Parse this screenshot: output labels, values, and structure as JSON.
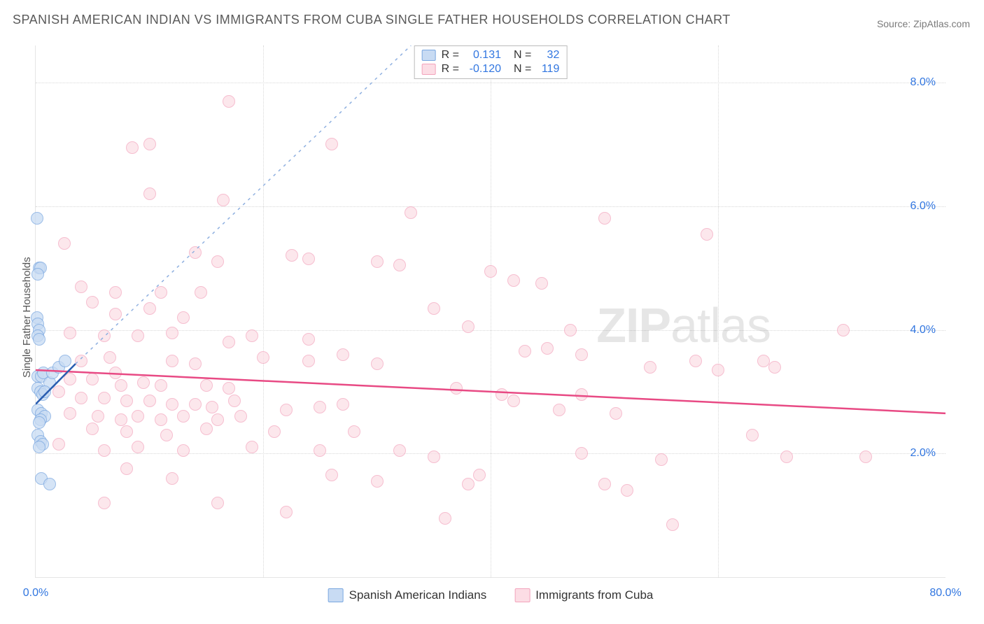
{
  "title": "SPANISH AMERICAN INDIAN VS IMMIGRANTS FROM CUBA SINGLE FATHER HOUSEHOLDS CORRELATION CHART",
  "source": "Source: ZipAtlas.com",
  "watermark_main": "ZIP",
  "watermark_sub": "atlas",
  "chart": {
    "ylabel": "Single Father Households",
    "xlim": [
      0,
      80
    ],
    "ylim": [
      0,
      8.6
    ],
    "grid_y_values": [
      2,
      4,
      6,
      8
    ],
    "grid_x_values": [
      20,
      40,
      60
    ],
    "ytick_labels": [
      "2.0%",
      "4.0%",
      "6.0%",
      "8.0%"
    ],
    "xtick_labels": {
      "left": "0.0%",
      "right": "80.0%"
    },
    "grid_color": "#d8d8d8",
    "background_color": "#ffffff",
    "axis_label_color": "#3176e0",
    "series": [
      {
        "key": "series_a",
        "name": "Spanish American Indians",
        "marker_fill": "#c8dbf3",
        "marker_stroke": "#7aa7e0",
        "marker_opacity": 0.75,
        "line_color": "#2a5db0",
        "line_width": 2.5,
        "ext_dash": "4,6",
        "ext_color": "#8fb0e0",
        "R": "0.131",
        "N": "32",
        "trend": {
          "x1": 0,
          "y1": 2.8,
          "x2": 3.5,
          "y2": 3.45
        },
        "trend_ext": {
          "x1": 3.5,
          "y1": 3.45,
          "x2": 33,
          "y2": 8.6
        },
        "points": [
          [
            0.1,
            5.8
          ],
          [
            0.3,
            5.0
          ],
          [
            0.4,
            5.0
          ],
          [
            0.2,
            4.9
          ],
          [
            0.1,
            4.2
          ],
          [
            0.2,
            4.1
          ],
          [
            0.3,
            4.0
          ],
          [
            0.2,
            3.9
          ],
          [
            0.3,
            3.85
          ],
          [
            0.2,
            3.25
          ],
          [
            0.5,
            3.25
          ],
          [
            0.7,
            3.3
          ],
          [
            1.2,
            3.15
          ],
          [
            1.5,
            3.3
          ],
          [
            2.0,
            3.4
          ],
          [
            2.6,
            3.5
          ],
          [
            0.2,
            3.05
          ],
          [
            0.4,
            3.0
          ],
          [
            0.6,
            2.95
          ],
          [
            0.8,
            3.0
          ],
          [
            0.2,
            2.7
          ],
          [
            0.5,
            2.65
          ],
          [
            0.8,
            2.6
          ],
          [
            0.4,
            2.55
          ],
          [
            0.3,
            2.5
          ],
          [
            0.2,
            2.3
          ],
          [
            0.4,
            2.2
          ],
          [
            0.6,
            2.15
          ],
          [
            0.3,
            2.1
          ],
          [
            0.5,
            1.6
          ],
          [
            1.2,
            1.5
          ]
        ]
      },
      {
        "key": "series_b",
        "name": "Immigrants from Cuba",
        "marker_fill": "#fcdde5",
        "marker_stroke": "#f3a3bc",
        "marker_opacity": 0.7,
        "line_color": "#e84a84",
        "line_width": 2.5,
        "R": "-0.120",
        "N": "119",
        "trend": {
          "x1": 0,
          "y1": 3.35,
          "x2": 80,
          "y2": 2.65
        },
        "points": [
          [
            17,
            7.7
          ],
          [
            10,
            7.0
          ],
          [
            8.5,
            6.95
          ],
          [
            26,
            7.0
          ],
          [
            10,
            6.2
          ],
          [
            16.5,
            6.1
          ],
          [
            33,
            5.9
          ],
          [
            50,
            5.8
          ],
          [
            59,
            5.55
          ],
          [
            2.5,
            5.4
          ],
          [
            14,
            5.25
          ],
          [
            16,
            5.1
          ],
          [
            22.5,
            5.2
          ],
          [
            24,
            5.15
          ],
          [
            30,
            5.1
          ],
          [
            32,
            5.05
          ],
          [
            4,
            4.7
          ],
          [
            7,
            4.6
          ],
          [
            11,
            4.6
          ],
          [
            14.5,
            4.6
          ],
          [
            40,
            4.95
          ],
          [
            42,
            4.8
          ],
          [
            44.5,
            4.75
          ],
          [
            5,
            4.45
          ],
          [
            7,
            4.25
          ],
          [
            10,
            4.35
          ],
          [
            13,
            4.2
          ],
          [
            35,
            4.35
          ],
          [
            38,
            4.05
          ],
          [
            71,
            4.0
          ],
          [
            3,
            3.95
          ],
          [
            6,
            3.9
          ],
          [
            9,
            3.9
          ],
          [
            12,
            3.95
          ],
          [
            47,
            4.0
          ],
          [
            17,
            3.8
          ],
          [
            19,
            3.9
          ],
          [
            24,
            3.85
          ],
          [
            43,
            3.65
          ],
          [
            45,
            3.7
          ],
          [
            48,
            3.6
          ],
          [
            58,
            3.5
          ],
          [
            64,
            3.5
          ],
          [
            4,
            3.5
          ],
          [
            6.5,
            3.55
          ],
          [
            12,
            3.5
          ],
          [
            14,
            3.45
          ],
          [
            20,
            3.55
          ],
          [
            24,
            3.5
          ],
          [
            27,
            3.6
          ],
          [
            30,
            3.45
          ],
          [
            7,
            3.3
          ],
          [
            3,
            3.2
          ],
          [
            5,
            3.2
          ],
          [
            7.5,
            3.1
          ],
          [
            9.5,
            3.15
          ],
          [
            11,
            3.1
          ],
          [
            15,
            3.1
          ],
          [
            17,
            3.05
          ],
          [
            37,
            3.05
          ],
          [
            41,
            2.95
          ],
          [
            48,
            2.95
          ],
          [
            54,
            3.4
          ],
          [
            60,
            3.35
          ],
          [
            65,
            3.4
          ],
          [
            2,
            3.0
          ],
          [
            4,
            2.9
          ],
          [
            6,
            2.9
          ],
          [
            8,
            2.85
          ],
          [
            10,
            2.85
          ],
          [
            12,
            2.8
          ],
          [
            14,
            2.8
          ],
          [
            15.5,
            2.75
          ],
          [
            17.5,
            2.85
          ],
          [
            22,
            2.7
          ],
          [
            25,
            2.75
          ],
          [
            27,
            2.8
          ],
          [
            42,
            2.85
          ],
          [
            46,
            2.7
          ],
          [
            51,
            2.65
          ],
          [
            3,
            2.65
          ],
          [
            5.5,
            2.6
          ],
          [
            7.5,
            2.55
          ],
          [
            9,
            2.6
          ],
          [
            11,
            2.55
          ],
          [
            13,
            2.6
          ],
          [
            16,
            2.55
          ],
          [
            18,
            2.6
          ],
          [
            5,
            2.4
          ],
          [
            8,
            2.35
          ],
          [
            11.5,
            2.3
          ],
          [
            15,
            2.4
          ],
          [
            21,
            2.35
          ],
          [
            28,
            2.35
          ],
          [
            63,
            2.3
          ],
          [
            2,
            2.15
          ],
          [
            6,
            2.05
          ],
          [
            9,
            2.1
          ],
          [
            13,
            2.05
          ],
          [
            19,
            2.1
          ],
          [
            25,
            2.05
          ],
          [
            32,
            2.05
          ],
          [
            35,
            1.95
          ],
          [
            48,
            2.0
          ],
          [
            55,
            1.9
          ],
          [
            66,
            1.95
          ],
          [
            73,
            1.95
          ],
          [
            8,
            1.75
          ],
          [
            12,
            1.6
          ],
          [
            26,
            1.65
          ],
          [
            30,
            1.55
          ],
          [
            38,
            1.5
          ],
          [
            39,
            1.65
          ],
          [
            50,
            1.5
          ],
          [
            52,
            1.4
          ],
          [
            6,
            1.2
          ],
          [
            16,
            1.2
          ],
          [
            22,
            1.05
          ],
          [
            36,
            0.95
          ],
          [
            56,
            0.85
          ]
        ]
      }
    ]
  }
}
